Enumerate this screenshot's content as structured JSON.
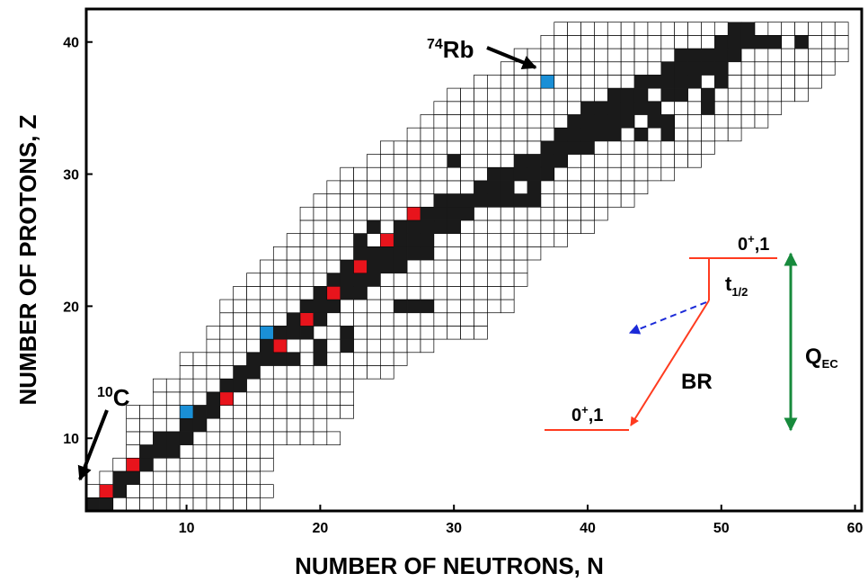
{
  "chart_data": {
    "type": "heatmap",
    "title": "",
    "xlabel": "NUMBER OF NEUTRONS, N",
    "ylabel": "NUMBER OF PROTONS, Z",
    "xlim": [
      2.5,
      60.5
    ],
    "ylim": [
      4.5,
      42.5
    ],
    "xticks": [
      10,
      20,
      30,
      40,
      50,
      60
    ],
    "yticks": [
      10,
      20,
      30,
      40
    ],
    "grid": false,
    "legend": "none",
    "colors": {
      "stable": "#1a1a1a",
      "unstable": "#ffffff",
      "red": "#e8141c",
      "blue": "#1a8fd6"
    },
    "z_ranges": [
      [
        5,
        3,
        15
      ],
      [
        6,
        3,
        16
      ],
      [
        7,
        4,
        15
      ],
      [
        8,
        5,
        16
      ],
      [
        9,
        6,
        16
      ],
      [
        10,
        6,
        21
      ],
      [
        11,
        6,
        20
      ],
      [
        12,
        6,
        22
      ],
      [
        13,
        8,
        22
      ],
      [
        14,
        8,
        22
      ],
      [
        15,
        10,
        25
      ],
      [
        16,
        10,
        26
      ],
      [
        17,
        12,
        28
      ],
      [
        18,
        12,
        32
      ],
      [
        19,
        13,
        32
      ],
      [
        20,
        13,
        34
      ],
      [
        21,
        14,
        34
      ],
      [
        22,
        15,
        35
      ],
      [
        23,
        16,
        35
      ],
      [
        24,
        17,
        36
      ],
      [
        25,
        18,
        38
      ],
      [
        26,
        19,
        40
      ],
      [
        27,
        19,
        41
      ],
      [
        28,
        20,
        43
      ],
      [
        29,
        21,
        44
      ],
      [
        30,
        22,
        46
      ],
      [
        31,
        24,
        48
      ],
      [
        32,
        25,
        49
      ],
      [
        33,
        27,
        51
      ],
      [
        34,
        28,
        53
      ],
      [
        35,
        29,
        54
      ],
      [
        36,
        30,
        56
      ],
      [
        37,
        32,
        57
      ],
      [
        38,
        34,
        58
      ],
      [
        39,
        35,
        59
      ],
      [
        40,
        37,
        59
      ],
      [
        41,
        38,
        59
      ]
    ],
    "extra_cells": [
      [
        28,
        32
      ]
    ],
    "stable_cells": [
      [
        3,
        5
      ],
      [
        4,
        5
      ],
      [
        4,
        6
      ],
      [
        5,
        6
      ],
      [
        5,
        7
      ],
      [
        6,
        7
      ],
      [
        6,
        8
      ],
      [
        7,
        8
      ],
      [
        7,
        9
      ],
      [
        8,
        9
      ],
      [
        9,
        9
      ],
      [
        8,
        10
      ],
      [
        9,
        10
      ],
      [
        10,
        10
      ],
      [
        10,
        11
      ],
      [
        11,
        11
      ],
      [
        11,
        12
      ],
      [
        12,
        12
      ],
      [
        12,
        13
      ],
      [
        13,
        13
      ],
      [
        13,
        14
      ],
      [
        14,
        14
      ],
      [
        14,
        15
      ],
      [
        15,
        15
      ],
      [
        15,
        16
      ],
      [
        16,
        16
      ],
      [
        16,
        17
      ],
      [
        17,
        17
      ],
      [
        17,
        18
      ],
      [
        18,
        18
      ],
      [
        19,
        18
      ],
      [
        18,
        19
      ],
      [
        19,
        19
      ],
      [
        20,
        19
      ],
      [
        19,
        20
      ],
      [
        20,
        20
      ],
      [
        21,
        20
      ],
      [
        20,
        21
      ],
      [
        21,
        21
      ],
      [
        22,
        21
      ],
      [
        21,
        22
      ],
      [
        22,
        22
      ],
      [
        23,
        22
      ],
      [
        24,
        22
      ],
      [
        22,
        23
      ],
      [
        24,
        23
      ],
      [
        25,
        23
      ],
      [
        26,
        23
      ],
      [
        23,
        24
      ],
      [
        24,
        24
      ],
      [
        25,
        24
      ],
      [
        26,
        24
      ],
      [
        25,
        25
      ],
      [
        26,
        25
      ],
      [
        27,
        25
      ],
      [
        28,
        25
      ],
      [
        26,
        26
      ],
      [
        27,
        26
      ],
      [
        28,
        26
      ],
      [
        29,
        26
      ],
      [
        28,
        27
      ],
      [
        29,
        27
      ],
      [
        30,
        28
      ],
      [
        31,
        28
      ],
      [
        32,
        28
      ],
      [
        32,
        29
      ],
      [
        33,
        29
      ],
      [
        34,
        30
      ],
      [
        35,
        30
      ],
      [
        36,
        30
      ],
      [
        35,
        31
      ],
      [
        37,
        31
      ],
      [
        38,
        31
      ],
      [
        37,
        32
      ],
      [
        38,
        32
      ],
      [
        39,
        33
      ],
      [
        40,
        33
      ],
      [
        40,
        34
      ],
      [
        41,
        34
      ],
      [
        42,
        34
      ],
      [
        41,
        35
      ],
      [
        42,
        35
      ],
      [
        43,
        35
      ],
      [
        42,
        36
      ],
      [
        43,
        36
      ],
      [
        44,
        36
      ],
      [
        46,
        36
      ],
      [
        44,
        37
      ],
      [
        45,
        37
      ],
      [
        46,
        37
      ],
      [
        46,
        38
      ],
      [
        47,
        38
      ],
      [
        48,
        38
      ],
      [
        48,
        39
      ],
      [
        49,
        39
      ],
      [
        50,
        39
      ],
      [
        52,
        40
      ],
      [
        51,
        40
      ],
      [
        50,
        40
      ],
      [
        17,
        16
      ],
      [
        18,
        16
      ],
      [
        33,
        28
      ],
      [
        34,
        28
      ],
      [
        36,
        31
      ],
      [
        39,
        32
      ],
      [
        36,
        29
      ],
      [
        27,
        24
      ],
      [
        28,
        24
      ],
      [
        30,
        27
      ],
      [
        33,
        30
      ],
      [
        38,
        33
      ],
      [
        40,
        32
      ],
      [
        41,
        33
      ],
      [
        44,
        33
      ],
      [
        45,
        34
      ],
      [
        45,
        35
      ],
      [
        44,
        35
      ],
      [
        46,
        34
      ],
      [
        46,
        33
      ],
      [
        47,
        36
      ],
      [
        48,
        37
      ],
      [
        49,
        36
      ],
      [
        49,
        35
      ],
      [
        50,
        38
      ],
      [
        49,
        38
      ],
      [
        51,
        39
      ],
      [
        52,
        41
      ],
      [
        51,
        41
      ],
      [
        54,
        40
      ],
      [
        56,
        40
      ],
      [
        35,
        28
      ],
      [
        36,
        28
      ],
      [
        30,
        31
      ],
      [
        28,
        20
      ],
      [
        27,
        20
      ],
      [
        22,
        17
      ],
      [
        22,
        18
      ],
      [
        20,
        16
      ],
      [
        20,
        17
      ],
      [
        23,
        25
      ],
      [
        24,
        26
      ],
      [
        26,
        20
      ],
      [
        23,
        21
      ],
      [
        43,
        34
      ],
      [
        47,
        39
      ],
      [
        50,
        37
      ],
      [
        53,
        40
      ],
      [
        42,
        33
      ],
      [
        29,
        28
      ],
      [
        30,
        26
      ],
      [
        31,
        27
      ],
      [
        34,
        29
      ],
      [
        37,
        30
      ],
      [
        39,
        34
      ],
      [
        40,
        35
      ],
      [
        47,
        37
      ]
    ],
    "red_cells": [
      [
        4,
        6
      ],
      [
        6,
        8
      ],
      [
        13,
        13
      ],
      [
        17,
        17
      ],
      [
        19,
        19
      ],
      [
        21,
        21
      ],
      [
        23,
        23
      ],
      [
        25,
        25
      ],
      [
        27,
        27
      ]
    ],
    "blue_cells": [
      [
        10,
        12
      ],
      [
        16,
        18
      ],
      [
        37,
        37
      ]
    ],
    "annotations": {
      "rb": {
        "mass": "74",
        "symbol": "Rb"
      },
      "c": {
        "mass": "10",
        "symbol": "C"
      },
      "level_upper": {
        "sup": "+",
        "text1": "0",
        "text2": ",1"
      },
      "level_lower": {
        "sup": "+",
        "text1": "0",
        "text2": ",1"
      },
      "half_life": {
        "base": "t",
        "sub": "1/2"
      },
      "branching": "BR",
      "q": {
        "base": "Q",
        "sub": "EC"
      }
    }
  }
}
